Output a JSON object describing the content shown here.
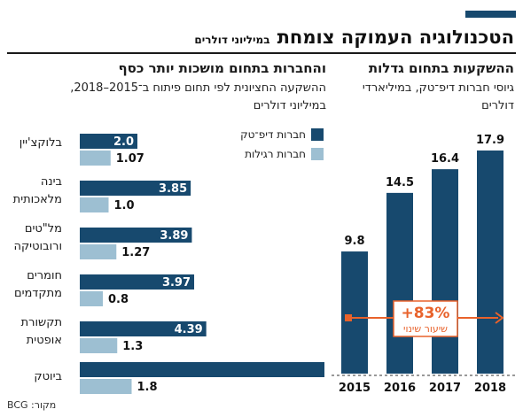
{
  "title": "הטכנולוגיה העמוקה צומחת",
  "title_unit": "במיליוני דולרים",
  "source": "מקור: BCG",
  "colors": {
    "deep_tech": "#17496e",
    "regular": "#9dbfd2",
    "accent": "#e8622b"
  },
  "chart_data": [
    {
      "type": "bar",
      "title": "ההשקעות בתחום גדלות",
      "subtitle": "גיוסי חברות דיפ־טק, במיליארדי דולרים",
      "categories": [
        "2015",
        "2016",
        "2017",
        "2018"
      ],
      "values": [
        9.8,
        14.5,
        16.4,
        17.9
      ],
      "ylim": [
        0,
        20
      ],
      "annotation": {
        "value": "+83%",
        "label": "שיעור שינוי"
      }
    },
    {
      "type": "bar",
      "orientation": "horizontal",
      "title": "והחברות בתחום מושכות יותר כסף",
      "subtitle": "ההשקעה החציונית לפי תחום פיתוח ב־2015–2018, במיליוני דולרים",
      "categories": [
        [
          "בלוקצ'יין"
        ],
        [
          "בינה",
          "מלאכותית"
        ],
        [
          "מל\"טים",
          "ורובוטיקה"
        ],
        [
          "חומרים",
          "מתקדמים"
        ],
        [
          "תקשורת",
          "אופטית"
        ],
        [
          "ביוטק"
        ]
      ],
      "series": [
        {
          "name": "חברות דיפ־טק",
          "values": [
            2.0,
            3.85,
            3.89,
            3.97,
            4.39,
            null
          ],
          "labels": [
            "2.0",
            "3.85",
            "3.89",
            "3.97",
            "4.39",
            ""
          ]
        },
        {
          "name": "חברות רגילות",
          "values": [
            1.07,
            1.0,
            1.27,
            0.8,
            1.3,
            1.8
          ],
          "labels": [
            "1.07",
            "1.0",
            "1.27",
            "0.8",
            "1.3",
            "1.8"
          ]
        }
      ],
      "xlim": [
        0,
        5.3
      ]
    }
  ]
}
